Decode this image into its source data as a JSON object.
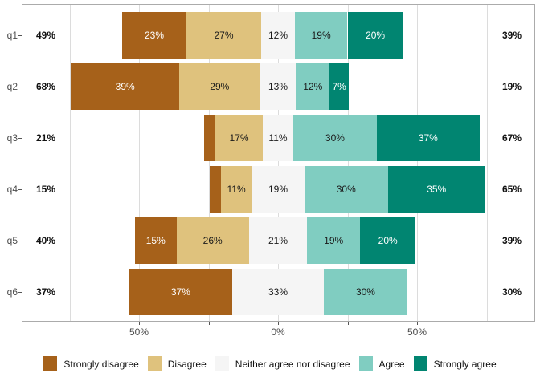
{
  "chart_data": {
    "type": "bar",
    "subtype": "diverging-stacked-likert",
    "title": "",
    "categories": [
      "q1",
      "q2",
      "q3",
      "q4",
      "q5",
      "q6"
    ],
    "legend": [
      "Strongly disagree",
      "Disagree",
      "Neither agree nor disagree",
      "Agree",
      "Strongly agree"
    ],
    "legend_position": "bottom",
    "grid": "vertical-only",
    "series": [
      {
        "name": "Strongly disagree",
        "color": "#a6611a",
        "label_color": "#ffffff",
        "values": [
          23,
          39,
          4,
          4,
          15,
          37
        ],
        "labels": [
          "23%",
          "39%",
          "",
          "",
          "15%",
          "37%"
        ]
      },
      {
        "name": "Disagree",
        "color": "#dfc27d",
        "label_color": "#1a1a1a",
        "values": [
          27,
          29,
          17,
          11,
          26,
          0
        ],
        "labels": [
          "27%",
          "29%",
          "17%",
          "11%",
          "26%",
          ""
        ]
      },
      {
        "name": "Neither agree nor disagree",
        "color": "#f5f5f5",
        "label_color": "#1a1a1a",
        "values": [
          12,
          13,
          11,
          19,
          21,
          33
        ],
        "labels": [
          "12%",
          "13%",
          "11%",
          "19%",
          "21%",
          "33%"
        ]
      },
      {
        "name": "Agree",
        "color": "#80cdc1",
        "label_color": "#1a1a1a",
        "values": [
          19,
          12,
          30,
          30,
          19,
          30
        ],
        "labels": [
          "19%",
          "12%",
          "30%",
          "30%",
          "19%",
          "30%"
        ]
      },
      {
        "name": "Strongly agree",
        "color": "#018571",
        "label_color": "#ffffff",
        "values": [
          20,
          7,
          37,
          35,
          20,
          0
        ],
        "labels": [
          "20%",
          "7%",
          "37%",
          "35%",
          "20%",
          ""
        ]
      }
    ],
    "left_totals": [
      "49%",
      "68%",
      "21%",
      "15%",
      "40%",
      "37%"
    ],
    "right_totals": [
      "39%",
      "19%",
      "67%",
      "65%",
      "39%",
      "30%"
    ],
    "neutral_centered_on_zero": true,
    "x_axis": {
      "xlim": [
        -92,
        93
      ],
      "gridline_values": [
        -75,
        -50,
        -25,
        0,
        25,
        50,
        75
      ],
      "tick_values": [
        -50,
        -25,
        0,
        25,
        50
      ],
      "labeled_ticks": [
        {
          "value": -50,
          "label": "50%"
        },
        {
          "value": 0,
          "label": "0%"
        },
        {
          "value": 50,
          "label": "50%"
        }
      ]
    },
    "style_colors": {
      "panel_border": "#ababab",
      "gridline": "#dcdcdc",
      "axis_text": "#4d4d4d",
      "tick_mark": "#555555",
      "background": "#ffffff"
    }
  }
}
